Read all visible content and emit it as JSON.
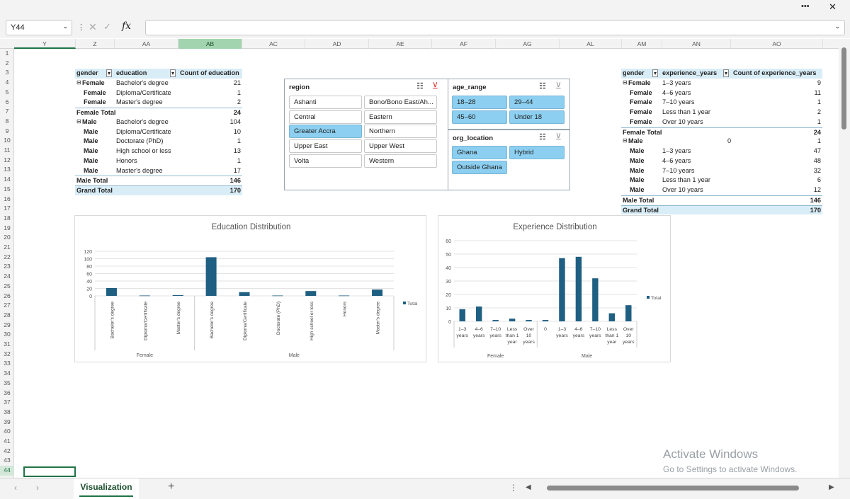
{
  "window": {
    "more": "•••",
    "close": "✕"
  },
  "formula_bar": {
    "name_box": "Y44",
    "fx": "fx",
    "value": ""
  },
  "columns": [
    "Y",
    "Z",
    "AA",
    "AB",
    "AC",
    "AD",
    "AE",
    "AF",
    "AG",
    "AL",
    "AM",
    "AN",
    "AO"
  ],
  "rows": [
    "1",
    "2",
    "3",
    "4",
    "5",
    "6",
    "7",
    "8",
    "9",
    "10",
    "11",
    "12",
    "13",
    "14",
    "15",
    "16",
    "17",
    "18",
    "19",
    "20",
    "21",
    "22",
    "23",
    "24",
    "25",
    "26",
    "27",
    "28",
    "29",
    "30",
    "31",
    "32",
    "33",
    "34",
    "35",
    "36",
    "37",
    "38",
    "39",
    "40",
    "41",
    "42",
    "43",
    "44"
  ],
  "pivot_education": {
    "headers": [
      "gender",
      "education",
      "Count of education"
    ],
    "rows": [
      {
        "g": "Female",
        "e": "Bachelor's degree",
        "c": "21",
        "t": "group"
      },
      {
        "g": "Female",
        "e": "Diploma/Certificate",
        "c": "1",
        "t": "item"
      },
      {
        "g": "Female",
        "e": "Master's degree",
        "c": "2",
        "t": "item"
      },
      {
        "g": "Female Total",
        "e": "",
        "c": "24",
        "t": "total"
      },
      {
        "g": "Male",
        "e": "Bachelor's degree",
        "c": "104",
        "t": "group"
      },
      {
        "g": "Male",
        "e": "Diploma/Certificate",
        "c": "10",
        "t": "item"
      },
      {
        "g": "Male",
        "e": "Doctorate (PhD)",
        "c": "1",
        "t": "item"
      },
      {
        "g": "Male",
        "e": "High school or less",
        "c": "13",
        "t": "item"
      },
      {
        "g": "Male",
        "e": "Honors",
        "c": "1",
        "t": "item"
      },
      {
        "g": "Male",
        "e": "Master's degree",
        "c": "17",
        "t": "item"
      },
      {
        "g": "Male Total",
        "e": "",
        "c": "146",
        "t": "total"
      },
      {
        "g": "Grand Total",
        "e": "",
        "c": "170",
        "t": "grand"
      }
    ]
  },
  "pivot_experience": {
    "headers": [
      "gender",
      "experience_years",
      "Count of experience_years"
    ],
    "rows": [
      {
        "g": "Female",
        "e": "1–3 years",
        "c": "9",
        "t": "group"
      },
      {
        "g": "Female",
        "e": "4–6 years",
        "c": "11",
        "t": "item"
      },
      {
        "g": "Female",
        "e": "7–10 years",
        "c": "1",
        "t": "item"
      },
      {
        "g": "Female",
        "e": "Less than 1 year",
        "c": "2",
        "t": "item"
      },
      {
        "g": "Female",
        "e": "Over 10 years",
        "c": "1",
        "t": "item"
      },
      {
        "g": "Female Total",
        "e": "",
        "c": "24",
        "t": "total"
      },
      {
        "g": "Male",
        "e": "0",
        "c": "1",
        "t": "group0"
      },
      {
        "g": "Male",
        "e": "1–3 years",
        "c": "47",
        "t": "item"
      },
      {
        "g": "Male",
        "e": "4–6 years",
        "c": "48",
        "t": "item"
      },
      {
        "g": "Male",
        "e": "7–10 years",
        "c": "32",
        "t": "item"
      },
      {
        "g": "Male",
        "e": "Less than 1 year",
        "c": "6",
        "t": "item"
      },
      {
        "g": "Male",
        "e": "Over 10 years",
        "c": "12",
        "t": "item"
      },
      {
        "g": "Male Total",
        "e": "",
        "c": "146",
        "t": "total"
      },
      {
        "g": "Grand Total",
        "e": "",
        "c": "170",
        "t": "grand"
      }
    ]
  },
  "slicers": {
    "region": {
      "title": "region",
      "items": [
        {
          "label": "Ashanti",
          "sel": false
        },
        {
          "label": "Bono/Bono East/Ah...",
          "sel": false
        },
        {
          "label": "Central",
          "sel": false
        },
        {
          "label": "Eastern",
          "sel": false
        },
        {
          "label": "Greater Accra",
          "sel": true
        },
        {
          "label": "Northern",
          "sel": false
        },
        {
          "label": "Upper East",
          "sel": false
        },
        {
          "label": "Upper West",
          "sel": false
        },
        {
          "label": "Volta",
          "sel": false
        },
        {
          "label": "Western",
          "sel": false
        }
      ]
    },
    "age_range": {
      "title": "age_range",
      "items": [
        {
          "label": "18–28",
          "sel": true
        },
        {
          "label": "29–44",
          "sel": true
        },
        {
          "label": "45–60",
          "sel": true
        },
        {
          "label": "Under 18",
          "sel": true
        }
      ]
    },
    "org_location": {
      "title": "org_location",
      "items": [
        {
          "label": "Ghana",
          "sel": true
        },
        {
          "label": "Hybrid",
          "sel": true
        },
        {
          "label": "Outside Ghana",
          "sel": true
        }
      ]
    }
  },
  "colors": {
    "bar": "#1f5f82",
    "accent": "#217346",
    "header_fill": "#d9edf7",
    "slicer_sel": "#8ccff0"
  },
  "chart_data": [
    {
      "type": "bar",
      "title": "Education Distribution",
      "legend": "Total",
      "ylim": [
        0,
        120
      ],
      "yticks": [
        "0",
        "20",
        "40",
        "60",
        "80",
        "100",
        "120"
      ],
      "groups": [
        "Female",
        "Male"
      ],
      "categories": [
        "Bachelor's degree",
        "Diploma/Certificate",
        "Master's degree",
        "Bachelor's degree",
        "Diploma/Certificate",
        "Doctorate (PhD)",
        "High school or less",
        "Honors",
        "Master's degree"
      ],
      "category_group": [
        0,
        0,
        0,
        1,
        1,
        1,
        1,
        1,
        1
      ],
      "values": [
        21,
        1,
        2,
        104,
        10,
        1,
        13,
        1,
        17
      ]
    },
    {
      "type": "bar",
      "title": "Experience Distribution",
      "legend": "Total",
      "ylim": [
        0,
        60
      ],
      "yticks": [
        "0",
        "10",
        "20",
        "30",
        "40",
        "50",
        "60"
      ],
      "groups": [
        "Female",
        "Male"
      ],
      "categories": [
        "1–3 years",
        "4–6 years",
        "7–10 years",
        "Less than 1 year",
        "Over 10 years",
        "0",
        "1–3 years",
        "4–6 years",
        "7–10 years",
        "Less than 1 year",
        "Over 10 years"
      ],
      "category_group": [
        0,
        0,
        0,
        0,
        0,
        1,
        1,
        1,
        1,
        1,
        1
      ],
      "values": [
        9,
        11,
        1,
        2,
        1,
        1,
        47,
        48,
        32,
        6,
        12
      ]
    }
  ],
  "sheet_tab": "Visualization",
  "watermark": {
    "title": "Activate Windows",
    "sub": "Go to Settings to activate Windows."
  }
}
